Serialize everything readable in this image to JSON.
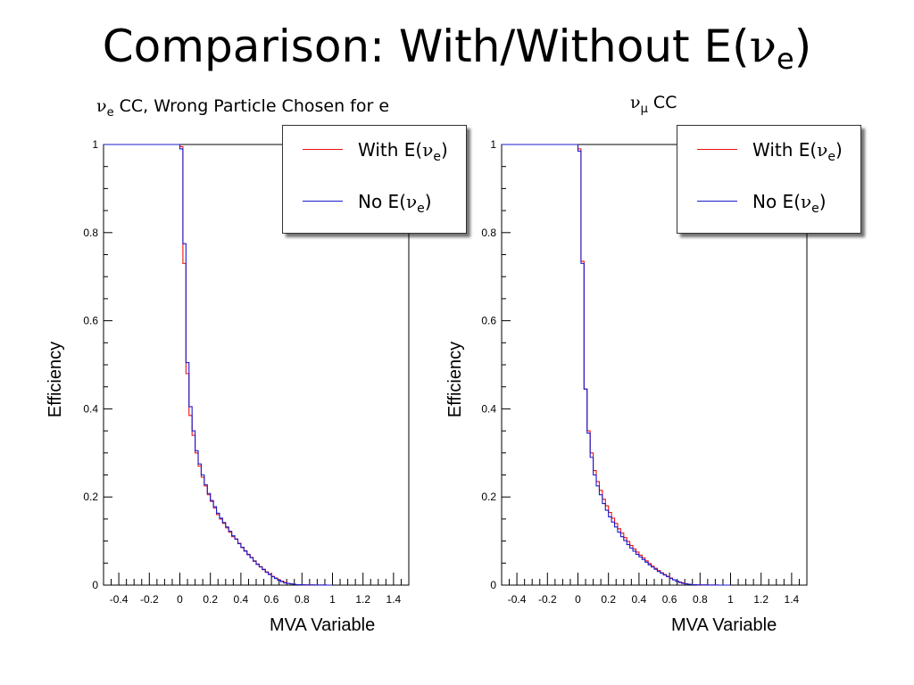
{
  "slide": {
    "title_prefix": "Comparison: With/Without E(",
    "title_nu": "ν",
    "title_sub": "e",
    "title_suffix": ")"
  },
  "colors": {
    "with": "#ee1111",
    "without": "#1a1acc",
    "axis": "#000000"
  },
  "legend": {
    "with_prefix": "With E(",
    "without_prefix": "No E(",
    "nu": "ν",
    "sub": "e",
    "suffix": ")"
  },
  "chart_data": [
    {
      "type": "line",
      "subtitle_nu": "ν",
      "subtitle_sub": "e",
      "subtitle_text": " CC, Wrong Particle Chosen for e",
      "xlabel": "MVA Variable",
      "ylabel": "Efficiency",
      "xlim": [
        -0.5,
        1.5
      ],
      "ylim": [
        0,
        1.0
      ],
      "xticks": [
        "-0.4",
        "-0.2",
        "0",
        "0.2",
        "0.4",
        "0.6",
        "0.8",
        "1",
        "1.2",
        "1.4"
      ],
      "yticks": [
        "0",
        "0.2",
        "0.4",
        "0.6",
        "0.8",
        "1"
      ],
      "grid": false,
      "legend_position": "top-right",
      "bin_edges": [
        -0.5,
        0.0,
        0.02,
        0.04,
        0.06,
        0.08,
        0.1,
        0.12,
        0.14,
        0.16,
        0.18,
        0.2,
        0.22,
        0.24,
        0.26,
        0.28,
        0.3,
        0.32,
        0.34,
        0.36,
        0.38,
        0.4,
        0.42,
        0.44,
        0.46,
        0.48,
        0.5,
        0.52,
        0.54,
        0.56,
        0.58,
        0.6,
        0.62,
        0.64,
        0.66,
        0.68,
        0.7,
        0.72,
        0.74,
        0.76,
        0.78,
        0.8,
        0.82,
        0.84,
        0.86,
        0.88,
        0.9,
        0.92,
        0.94,
        0.96,
        0.98,
        1.0,
        1.5
      ],
      "series": [
        {
          "name": "With E(νe)",
          "values": [
            1.0,
            0.995,
            0.73,
            0.48,
            0.385,
            0.34,
            0.3,
            0.27,
            0.245,
            0.225,
            0.205,
            0.19,
            0.175,
            0.16,
            0.15,
            0.14,
            0.13,
            0.12,
            0.11,
            0.105,
            0.095,
            0.085,
            0.078,
            0.07,
            0.063,
            0.055,
            0.048,
            0.042,
            0.036,
            0.03,
            0.025,
            0.02,
            0.016,
            0.012,
            0.009,
            0.006,
            0.004,
            0.003,
            0.002,
            0.001,
            0.0008,
            0.0006,
            0.0005,
            0.0004,
            0.0003,
            0.0002,
            0.0002,
            0.0001,
            0.0001,
            0.0,
            0.0
          ]
        },
        {
          "name": "No E(νe)",
          "values": [
            1.0,
            0.99,
            0.775,
            0.505,
            0.405,
            0.35,
            0.305,
            0.275,
            0.25,
            0.228,
            0.208,
            0.192,
            0.178,
            0.163,
            0.152,
            0.142,
            0.132,
            0.122,
            0.112,
            0.104,
            0.094,
            0.086,
            0.077,
            0.069,
            0.062,
            0.054,
            0.047,
            0.041,
            0.035,
            0.029,
            0.024,
            0.019,
            0.015,
            0.011,
            0.008,
            0.005,
            0.004,
            0.003,
            0.002,
            0.001,
            0.0008,
            0.0006,
            0.0005,
            0.0004,
            0.0003,
            0.0002,
            0.0002,
            0.0001,
            0.0001,
            0.0,
            0.0
          ]
        }
      ]
    },
    {
      "type": "line",
      "subtitle_nu": "ν",
      "subtitle_sub": "μ",
      "subtitle_text": " CC",
      "xlabel": "MVA Variable",
      "ylabel": "Efficiency",
      "xlim": [
        -0.5,
        1.5
      ],
      "ylim": [
        0,
        1.0
      ],
      "xticks": [
        "-0.4",
        "-0.2",
        "0",
        "0.2",
        "0.4",
        "0.6",
        "0.8",
        "1",
        "1.2",
        "1.4"
      ],
      "yticks": [
        "0",
        "0.2",
        "0.4",
        "0.6",
        "0.8",
        "1"
      ],
      "grid": false,
      "legend_position": "top-right",
      "bin_edges": [
        -0.5,
        0.0,
        0.02,
        0.04,
        0.06,
        0.08,
        0.1,
        0.12,
        0.14,
        0.16,
        0.18,
        0.2,
        0.22,
        0.24,
        0.26,
        0.28,
        0.3,
        0.32,
        0.34,
        0.36,
        0.38,
        0.4,
        0.42,
        0.44,
        0.46,
        0.48,
        0.5,
        0.52,
        0.54,
        0.56,
        0.58,
        0.6,
        0.62,
        0.64,
        0.66,
        0.68,
        0.7,
        0.72,
        0.74,
        0.76,
        0.78,
        0.8,
        0.82,
        0.84,
        0.86,
        0.88,
        0.9,
        0.92,
        0.94,
        0.96,
        0.98,
        1.0,
        1.5
      ],
      "series": [
        {
          "name": "With E(νe)",
          "values": [
            1.0,
            0.99,
            0.735,
            0.445,
            0.35,
            0.3,
            0.26,
            0.235,
            0.215,
            0.195,
            0.18,
            0.165,
            0.152,
            0.14,
            0.128,
            0.118,
            0.108,
            0.099,
            0.09,
            0.082,
            0.075,
            0.068,
            0.062,
            0.055,
            0.049,
            0.043,
            0.038,
            0.033,
            0.028,
            0.024,
            0.02,
            0.016,
            0.012,
            0.009,
            0.007,
            0.005,
            0.003,
            0.002,
            0.001,
            0.001,
            0.0005,
            0.0004,
            0.0003,
            0.0002,
            0.0002,
            0.0001,
            0.0001,
            0.0,
            0.0,
            0.0,
            0.0
          ]
        },
        {
          "name": "No E(νe)",
          "values": [
            1.0,
            0.985,
            0.73,
            0.445,
            0.345,
            0.29,
            0.25,
            0.225,
            0.205,
            0.185,
            0.17,
            0.155,
            0.143,
            0.132,
            0.12,
            0.11,
            0.101,
            0.092,
            0.084,
            0.077,
            0.07,
            0.064,
            0.058,
            0.052,
            0.046,
            0.041,
            0.036,
            0.031,
            0.027,
            0.023,
            0.019,
            0.015,
            0.012,
            0.009,
            0.006,
            0.004,
            0.003,
            0.002,
            0.001,
            0.001,
            0.0005,
            0.0004,
            0.0003,
            0.0002,
            0.0002,
            0.0001,
            0.0001,
            0.0,
            0.0,
            0.0,
            0.0
          ]
        }
      ]
    }
  ]
}
